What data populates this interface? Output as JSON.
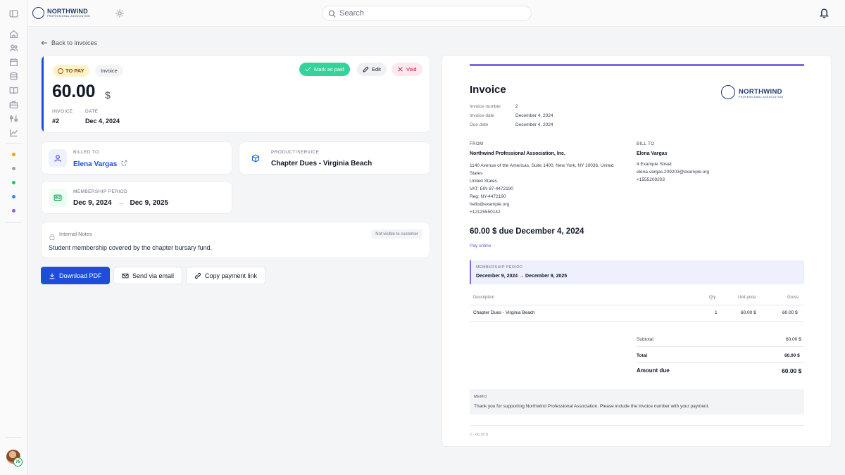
{
  "brand": {
    "name": "NORTHWIND",
    "tagline": "PROFESSIONAL ASSOCIATION"
  },
  "search": {
    "placeholder": "Search"
  },
  "user": {
    "badge": "75"
  },
  "sidebar": {
    "icons": [
      "panel-toggle-icon",
      "home-icon",
      "users-icon",
      "calendar-icon",
      "database-icon",
      "book-icon",
      "briefcase-icon",
      "sliders-icon",
      "chart-icon"
    ],
    "dots": [
      "#f59e0b",
      "#9ca3af",
      "#22c55e",
      "#3b82f6",
      "#8b5cf6"
    ]
  },
  "nav": {
    "back": "Back to invoices"
  },
  "summary": {
    "status": "TO PAY",
    "type": "Invoice",
    "amount": "60.00",
    "currency": "$",
    "invoice_label": "INVOICE",
    "invoice_value": "#2",
    "date_label": "DATE",
    "date_value": "Dec 4, 2024",
    "actions": {
      "paid": "Mark as paid",
      "edit": "Edit",
      "void": "Void"
    }
  },
  "billed_to": {
    "label": "BILLED TO",
    "value": "Elena Vargas"
  },
  "product": {
    "label": "PRODUCT/SERVICE",
    "value": "Chapter Dues - Virginia Beach"
  },
  "membership": {
    "label": "MEMBERSHIP PERIOD",
    "start": "Dec 9, 2024",
    "end": "Dec 9, 2025"
  },
  "notes": {
    "title": "Internal Notes",
    "badge": "Not visible to customer",
    "text": "Student membership covered by the chapter bursary fund."
  },
  "actions": {
    "pdf": "Download PDF",
    "email": "Send via email",
    "link": "Copy payment link"
  },
  "doc": {
    "title": "Invoice",
    "brand": "NORTHWIND",
    "brand_sub": "PROFESSIONAL ASSOCIATION",
    "fields": [
      {
        "label": "Invoice number",
        "value": "2"
      },
      {
        "label": "Invoice date",
        "value": "December 4, 2024"
      },
      {
        "label": "Due date",
        "value": "December 4, 2024"
      }
    ],
    "from": {
      "label": "FROM",
      "name": "Northwind Professional Association, Inc.",
      "lines": [
        "1140 Avenue of the Americas, Suite 1400, New York, NY 10036, United",
        "States",
        "United States",
        "VAT: EIN 87-4472190",
        "Reg: NY-4472190",
        "hello@example.org",
        "+12125550142"
      ]
    },
    "bill_to": {
      "label": "BILL TO",
      "name": "Elena Vargas",
      "lines": [
        "4 Example Street",
        "elena.vargas.209203@example.org",
        "+1555209203"
      ]
    },
    "due_line": "60.00 $ due December 4, 2024",
    "pay_online": "Pay online",
    "period_label": "MEMBERSHIP PERIOD",
    "period_value": "December 9, 2024 → December 9, 2025",
    "table": {
      "headers": {
        "description": "Description",
        "qty": "Qty",
        "unit": "Unit price",
        "gross": "Gross"
      },
      "rows": [
        {
          "description": "Chapter Dues - Virginia Beach",
          "qty": "1",
          "unit": "60.00 $",
          "gross": "60.00 $"
        }
      ]
    },
    "totals": {
      "subtotal_label": "Subtotal",
      "subtotal": "60.00 $",
      "total_label": "Total",
      "total": "60.00 $",
      "due_label": "Amount due",
      "due": "60.00 $"
    },
    "memo": {
      "label": "MEMO",
      "text": "Thank you for supporting Northwind Professional Association. Please include the invoice number with your payment."
    },
    "footer": "2 · 60.00 $"
  }
}
